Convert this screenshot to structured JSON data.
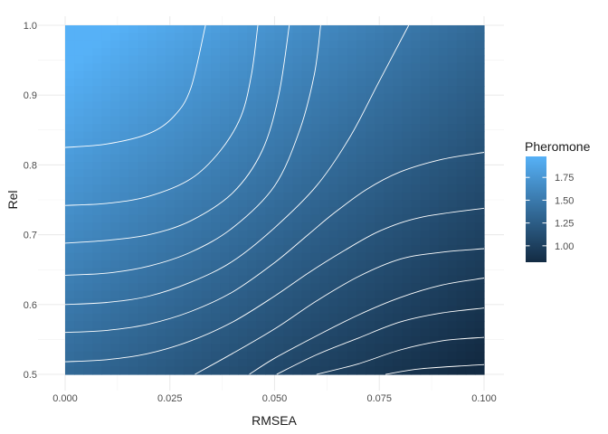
{
  "chart_data": {
    "type": "heatmap",
    "title": "",
    "xlabel": "RMSEA",
    "ylabel": "Rel",
    "xlim": [
      0.0,
      0.1
    ],
    "ylim": [
      0.5,
      1.0
    ],
    "x_ticks": [
      "0.000",
      "0.025",
      "0.050",
      "0.075",
      "0.100"
    ],
    "x_tick_values": [
      0.0,
      0.025,
      0.05,
      0.075,
      0.1
    ],
    "y_ticks": [
      "0.5",
      "0.6",
      "0.7",
      "0.8",
      "0.9",
      "1.0"
    ],
    "y_tick_values": [
      0.5,
      0.6,
      0.7,
      0.8,
      0.9,
      1.0
    ],
    "grid": true,
    "legend": {
      "title": "Pheromone",
      "position": "right",
      "labels": [
        "1.75",
        "1.50",
        "1.25",
        "1.00"
      ],
      "label_values": [
        1.75,
        1.5,
        1.25,
        1.0
      ],
      "range": [
        0.82,
        1.98
      ],
      "color_low": "#132b43",
      "color_high": "#56b1f7"
    },
    "contour_lines": [
      {
        "points": [
          [
            0.0,
            0.825
          ],
          [
            0.01,
            0.83
          ],
          [
            0.02,
            0.845
          ],
          [
            0.026,
            0.87
          ],
          [
            0.03,
            0.91
          ],
          [
            0.0335,
            1.0
          ]
        ]
      },
      {
        "points": [
          [
            0.0,
            0.742
          ],
          [
            0.01,
            0.745
          ],
          [
            0.02,
            0.755
          ],
          [
            0.03,
            0.78
          ],
          [
            0.037,
            0.82
          ],
          [
            0.042,
            0.87
          ],
          [
            0.0445,
            0.93
          ],
          [
            0.046,
            1.0
          ]
        ]
      },
      {
        "points": [
          [
            0.0,
            0.688
          ],
          [
            0.01,
            0.692
          ],
          [
            0.02,
            0.7
          ],
          [
            0.03,
            0.72
          ],
          [
            0.04,
            0.76
          ],
          [
            0.047,
            0.82
          ],
          [
            0.051,
            0.9
          ],
          [
            0.0535,
            1.0
          ]
        ]
      },
      {
        "points": [
          [
            0.0,
            0.642
          ],
          [
            0.01,
            0.645
          ],
          [
            0.02,
            0.655
          ],
          [
            0.03,
            0.675
          ],
          [
            0.04,
            0.71
          ],
          [
            0.05,
            0.77
          ],
          [
            0.056,
            0.85
          ],
          [
            0.0595,
            0.93
          ],
          [
            0.061,
            1.0
          ]
        ]
      },
      {
        "points": [
          [
            0.0,
            0.6
          ],
          [
            0.01,
            0.603
          ],
          [
            0.02,
            0.612
          ],
          [
            0.03,
            0.632
          ],
          [
            0.04,
            0.662
          ],
          [
            0.05,
            0.71
          ],
          [
            0.06,
            0.77
          ],
          [
            0.068,
            0.84
          ],
          [
            0.075,
            0.92
          ],
          [
            0.082,
            1.0
          ]
        ]
      },
      {
        "points": [
          [
            0.0,
            0.56
          ],
          [
            0.01,
            0.563
          ],
          [
            0.02,
            0.572
          ],
          [
            0.03,
            0.59
          ],
          [
            0.04,
            0.618
          ],
          [
            0.05,
            0.66
          ],
          [
            0.058,
            0.7
          ],
          [
            0.064,
            0.73
          ],
          [
            0.072,
            0.765
          ],
          [
            0.08,
            0.79
          ],
          [
            0.09,
            0.808
          ],
          [
            0.1,
            0.818
          ]
        ]
      },
      {
        "points": [
          [
            0.0,
            0.518
          ],
          [
            0.01,
            0.521
          ],
          [
            0.02,
            0.53
          ],
          [
            0.03,
            0.548
          ],
          [
            0.04,
            0.575
          ],
          [
            0.05,
            0.612
          ],
          [
            0.058,
            0.645
          ],
          [
            0.066,
            0.675
          ],
          [
            0.075,
            0.705
          ],
          [
            0.085,
            0.725
          ],
          [
            0.1,
            0.738
          ]
        ]
      },
      {
        "points": [
          [
            0.031,
            0.5
          ],
          [
            0.04,
            0.53
          ],
          [
            0.05,
            0.565
          ],
          [
            0.06,
            0.605
          ],
          [
            0.07,
            0.64
          ],
          [
            0.08,
            0.665
          ],
          [
            0.09,
            0.675
          ],
          [
            0.1,
            0.68
          ]
        ]
      },
      {
        "points": [
          [
            0.044,
            0.5
          ],
          [
            0.05,
            0.523
          ],
          [
            0.06,
            0.555
          ],
          [
            0.07,
            0.585
          ],
          [
            0.08,
            0.61
          ],
          [
            0.09,
            0.628
          ],
          [
            0.1,
            0.638
          ]
        ]
      },
      {
        "points": [
          [
            0.0505,
            0.5
          ],
          [
            0.06,
            0.528
          ],
          [
            0.07,
            0.552
          ],
          [
            0.08,
            0.575
          ],
          [
            0.09,
            0.588
          ],
          [
            0.1,
            0.595
          ]
        ]
      },
      {
        "points": [
          [
            0.06,
            0.5
          ],
          [
            0.07,
            0.515
          ],
          [
            0.08,
            0.535
          ],
          [
            0.09,
            0.548
          ],
          [
            0.1,
            0.553
          ]
        ]
      },
      {
        "points": [
          [
            0.0765,
            0.5
          ],
          [
            0.085,
            0.508
          ],
          [
            0.1,
            0.514
          ]
        ]
      }
    ]
  }
}
